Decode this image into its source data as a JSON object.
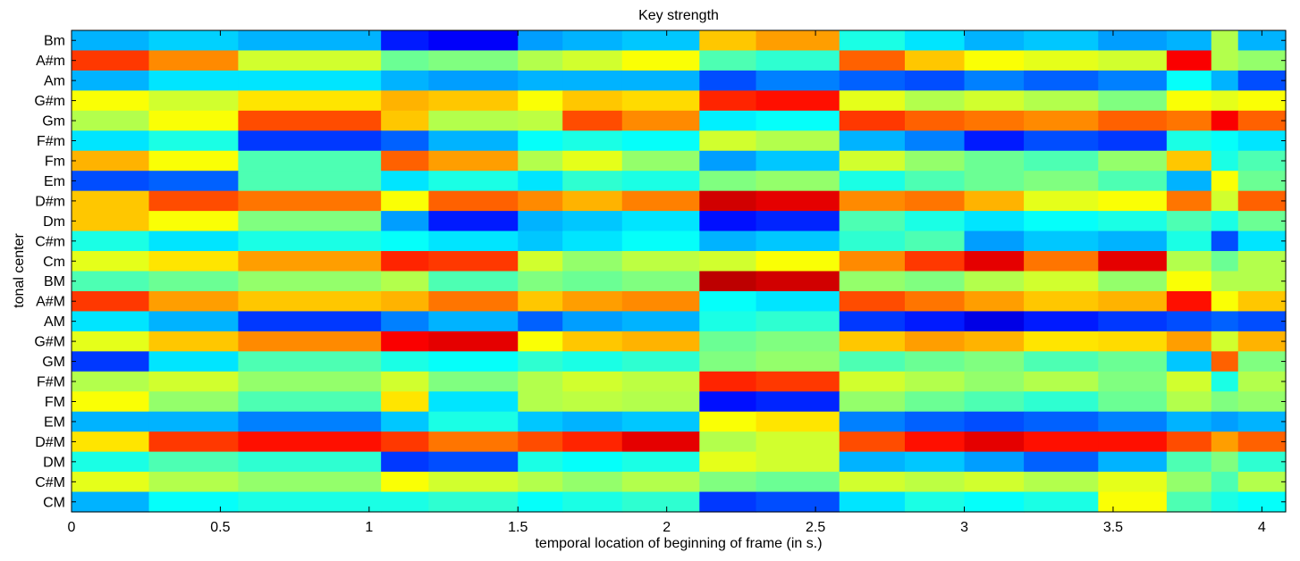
{
  "chart_data": {
    "type": "heatmap",
    "title": "Key strength",
    "xlabel": "temporal location of beginning of frame (in s.)",
    "ylabel": "tonal center",
    "xlim": [
      0,
      4.08
    ],
    "x_ticks": [
      0,
      0.5,
      1,
      1.5,
      2,
      2.5,
      3,
      3.5,
      4
    ],
    "x_tick_labels": [
      "0",
      "0.5",
      "1",
      "1.5",
      "2",
      "2.5",
      "3",
      "3.5",
      "4"
    ],
    "y_categories": [
      "Bm",
      "A#m",
      "Am",
      "G#m",
      "Gm",
      "F#m",
      "Fm",
      "Em",
      "D#m",
      "Dm",
      "C#m",
      "Cm",
      "BM",
      "A#M",
      "AM",
      "G#M",
      "GM",
      "F#M",
      "FM",
      "EM",
      "D#M",
      "DM",
      "C#M",
      "CM"
    ],
    "colormap": "jet",
    "value_range": [
      0,
      1
    ],
    "segment_bounds": [
      0,
      0.26,
      0.56,
      1.04,
      1.2,
      1.5,
      1.65,
      1.85,
      2.11,
      2.3,
      2.58,
      2.8,
      3.0,
      3.2,
      3.45,
      3.68,
      3.83,
      3.92,
      4.08
    ],
    "values": [
      [
        0.3,
        0.33,
        0.3,
        0.15,
        0.12,
        0.28,
        0.3,
        0.32,
        0.68,
        0.72,
        0.4,
        0.35,
        0.3,
        0.32,
        0.28,
        0.3,
        0.55,
        0.3
      ],
      [
        0.82,
        0.74,
        0.58,
        0.48,
        0.5,
        0.55,
        0.58,
        0.62,
        0.45,
        0.42,
        0.78,
        0.68,
        0.62,
        0.6,
        0.58,
        0.88,
        0.55,
        0.52
      ],
      [
        0.3,
        0.35,
        0.35,
        0.3,
        0.28,
        0.3,
        0.3,
        0.3,
        0.2,
        0.25,
        0.22,
        0.2,
        0.25,
        0.22,
        0.25,
        0.38,
        0.3,
        0.2
      ],
      [
        0.62,
        0.58,
        0.65,
        0.7,
        0.68,
        0.62,
        0.68,
        0.66,
        0.84,
        0.86,
        0.6,
        0.55,
        0.58,
        0.55,
        0.5,
        0.62,
        0.6,
        0.62
      ],
      [
        0.55,
        0.62,
        0.8,
        0.68,
        0.55,
        0.56,
        0.8,
        0.74,
        0.36,
        0.38,
        0.82,
        0.78,
        0.76,
        0.74,
        0.78,
        0.76,
        0.88,
        0.78
      ],
      [
        0.35,
        0.4,
        0.18,
        0.22,
        0.3,
        0.38,
        0.4,
        0.38,
        0.58,
        0.55,
        0.3,
        0.25,
        0.15,
        0.2,
        0.18,
        0.4,
        0.38,
        0.35
      ],
      [
        0.7,
        0.62,
        0.45,
        0.78,
        0.72,
        0.55,
        0.6,
        0.52,
        0.28,
        0.32,
        0.58,
        0.52,
        0.48,
        0.45,
        0.52,
        0.68,
        0.4,
        0.45
      ],
      [
        0.2,
        0.22,
        0.45,
        0.35,
        0.4,
        0.35,
        0.42,
        0.4,
        0.5,
        0.52,
        0.4,
        0.45,
        0.48,
        0.5,
        0.45,
        0.3,
        0.62,
        0.48
      ],
      [
        0.68,
        0.8,
        0.76,
        0.62,
        0.78,
        0.74,
        0.7,
        0.75,
        0.92,
        0.9,
        0.74,
        0.76,
        0.7,
        0.6,
        0.62,
        0.76,
        0.58,
        0.78
      ],
      [
        0.68,
        0.62,
        0.5,
        0.28,
        0.15,
        0.3,
        0.32,
        0.35,
        0.14,
        0.16,
        0.45,
        0.4,
        0.35,
        0.38,
        0.4,
        0.45,
        0.4,
        0.48
      ],
      [
        0.4,
        0.35,
        0.4,
        0.38,
        0.35,
        0.32,
        0.35,
        0.38,
        0.3,
        0.32,
        0.42,
        0.45,
        0.28,
        0.32,
        0.3,
        0.4,
        0.2,
        0.35
      ],
      [
        0.6,
        0.65,
        0.72,
        0.84,
        0.82,
        0.58,
        0.52,
        0.56,
        0.58,
        0.62,
        0.74,
        0.82,
        0.9,
        0.76,
        0.9,
        0.55,
        0.48,
        0.55
      ],
      [
        0.45,
        0.48,
        0.52,
        0.55,
        0.45,
        0.5,
        0.48,
        0.5,
        0.94,
        0.92,
        0.52,
        0.5,
        0.55,
        0.58,
        0.52,
        0.62,
        0.55,
        0.55
      ],
      [
        0.82,
        0.72,
        0.68,
        0.7,
        0.76,
        0.68,
        0.72,
        0.74,
        0.38,
        0.35,
        0.8,
        0.76,
        0.72,
        0.68,
        0.7,
        0.86,
        0.62,
        0.68
      ],
      [
        0.35,
        0.3,
        0.18,
        0.25,
        0.3,
        0.22,
        0.28,
        0.3,
        0.4,
        0.42,
        0.18,
        0.15,
        0.1,
        0.15,
        0.18,
        0.2,
        0.22,
        0.2
      ],
      [
        0.6,
        0.68,
        0.74,
        0.88,
        0.9,
        0.62,
        0.68,
        0.7,
        0.48,
        0.5,
        0.68,
        0.72,
        0.7,
        0.65,
        0.66,
        0.72,
        0.58,
        0.7
      ],
      [
        0.18,
        0.35,
        0.45,
        0.4,
        0.38,
        0.42,
        0.4,
        0.42,
        0.5,
        0.52,
        0.45,
        0.48,
        0.5,
        0.45,
        0.48,
        0.32,
        0.78,
        0.5
      ],
      [
        0.55,
        0.58,
        0.52,
        0.58,
        0.5,
        0.55,
        0.58,
        0.56,
        0.84,
        0.82,
        0.58,
        0.55,
        0.52,
        0.55,
        0.5,
        0.58,
        0.4,
        0.55
      ],
      [
        0.62,
        0.52,
        0.45,
        0.65,
        0.35,
        0.55,
        0.56,
        0.55,
        0.14,
        0.16,
        0.52,
        0.48,
        0.45,
        0.42,
        0.48,
        0.55,
        0.5,
        0.52
      ],
      [
        0.3,
        0.3,
        0.25,
        0.32,
        0.4,
        0.32,
        0.3,
        0.32,
        0.62,
        0.65,
        0.25,
        0.22,
        0.2,
        0.22,
        0.25,
        0.3,
        0.28,
        0.3
      ],
      [
        0.65,
        0.82,
        0.86,
        0.82,
        0.76,
        0.8,
        0.84,
        0.9,
        0.55,
        0.58,
        0.8,
        0.86,
        0.9,
        0.86,
        0.86,
        0.8,
        0.72,
        0.78
      ],
      [
        0.4,
        0.45,
        0.42,
        0.18,
        0.2,
        0.4,
        0.38,
        0.4,
        0.6,
        0.58,
        0.3,
        0.32,
        0.28,
        0.22,
        0.3,
        0.45,
        0.5,
        0.42
      ],
      [
        0.6,
        0.55,
        0.52,
        0.62,
        0.58,
        0.55,
        0.52,
        0.55,
        0.5,
        0.48,
        0.58,
        0.56,
        0.58,
        0.55,
        0.6,
        0.52,
        0.45,
        0.55
      ],
      [
        0.3,
        0.38,
        0.4,
        0.4,
        0.42,
        0.38,
        0.4,
        0.42,
        0.18,
        0.2,
        0.35,
        0.4,
        0.38,
        0.4,
        0.62,
        0.45,
        0.4,
        0.38
      ]
    ]
  }
}
